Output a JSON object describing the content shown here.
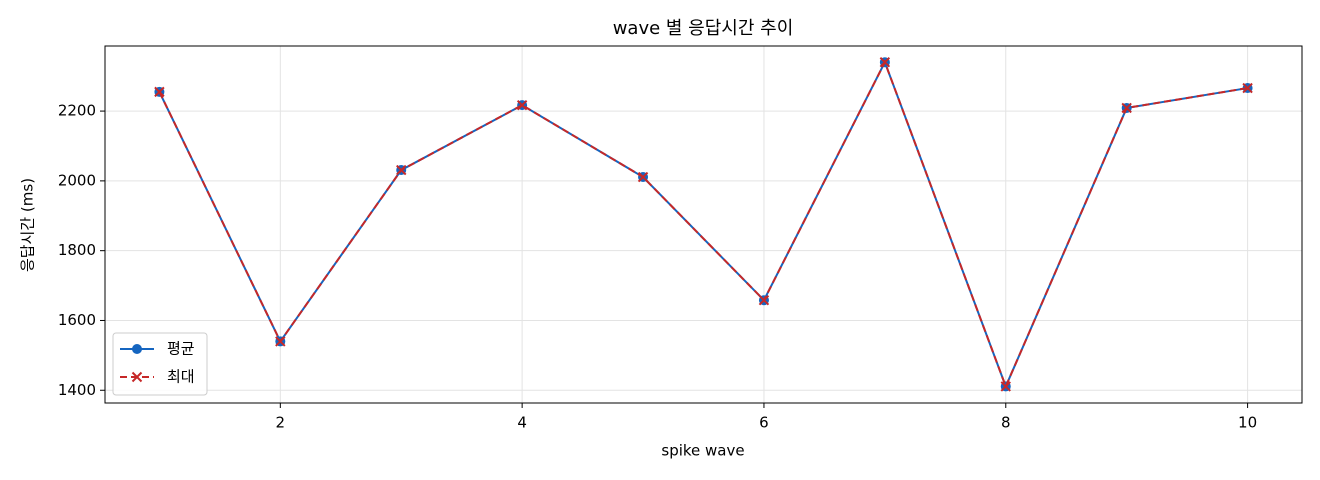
{
  "chart_data": {
    "type": "line",
    "title": "wave 별 응답시간 추이",
    "x_label": "spike wave",
    "y_label": "응답시간 (ms)",
    "x": [
      1,
      2,
      3,
      4,
      5,
      6,
      7,
      8,
      9,
      10
    ],
    "series": [
      {
        "name": "평균",
        "color": "#1565c0",
        "marker": "o",
        "linestyle": "solid",
        "values": [
          2255,
          1540,
          2031,
          2217,
          2011,
          1658,
          2340,
          1411,
          2209,
          2266
        ]
      },
      {
        "name": "최대",
        "color": "#c62828",
        "marker": "x",
        "linestyle": "dashed",
        "values": [
          2255,
          1540,
          2031,
          2217,
          2011,
          1658,
          2340,
          1411,
          2209,
          2266
        ]
      }
    ],
    "xlim": [
      0.55,
      10.45
    ],
    "xticks": [
      2,
      4,
      6,
      8,
      10
    ],
    "ylim": [
      1363.5,
      2386.5
    ],
    "yticks": [
      1400,
      1600,
      1800,
      2000,
      2200
    ],
    "grid": true,
    "legend": "lower left"
  }
}
